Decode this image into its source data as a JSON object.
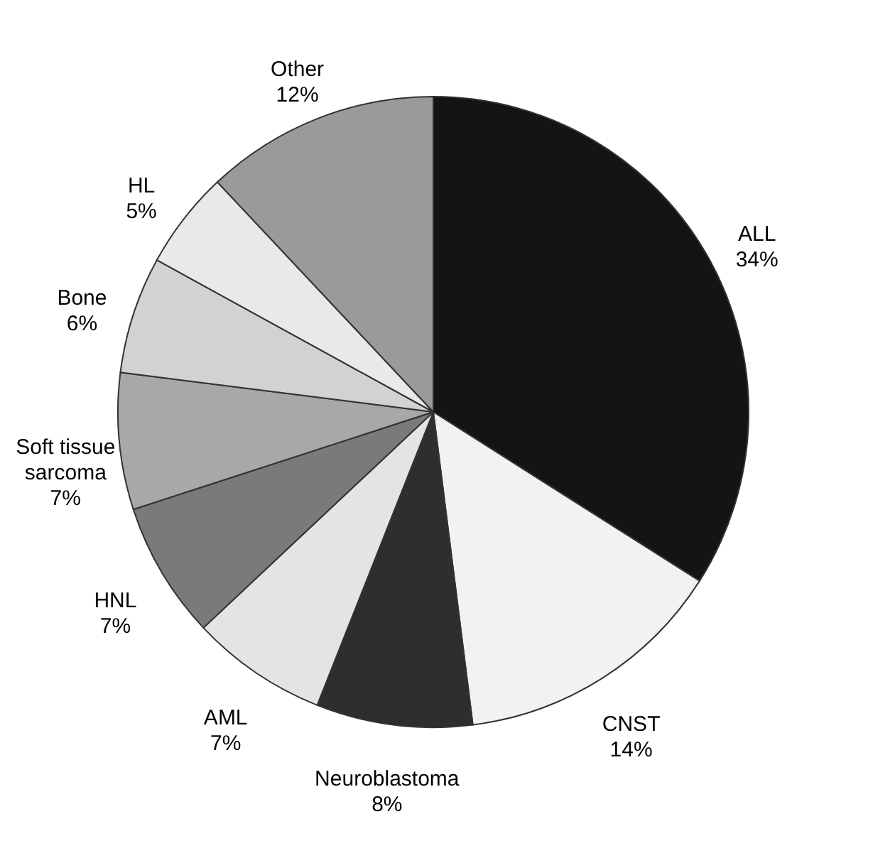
{
  "chart_data": {
    "type": "pie",
    "categories": [
      "ALL",
      "CNST",
      "Neuroblastoma",
      "AML",
      "HNL",
      "Soft tissue sarcoma",
      "Bone",
      "HL",
      "Other"
    ],
    "values": [
      34,
      14,
      8,
      7,
      7,
      7,
      6,
      5,
      12
    ],
    "value_labels": [
      "34%",
      "14%",
      "8%",
      "7%",
      "7%",
      "7%",
      "6%",
      "5%",
      "12%"
    ],
    "colors": [
      "#141414",
      "#f2f2f2",
      "#2e2e2e",
      "#e4e4e4",
      "#7a7a7a",
      "#a8a8a8",
      "#d2d2d2",
      "#e9e9e9",
      "#9a9a9a"
    ],
    "legend": false
  }
}
